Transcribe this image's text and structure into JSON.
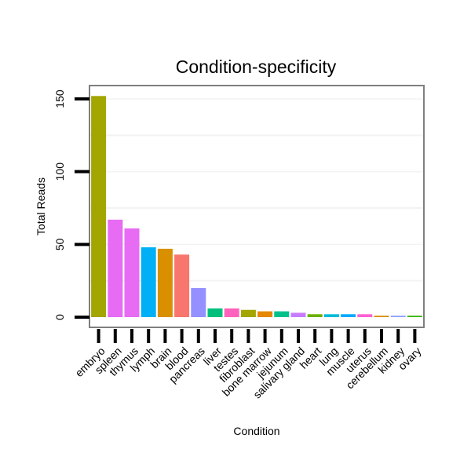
{
  "chart_data": {
    "type": "bar",
    "title": "Condition-specificity",
    "xlabel": "Condition",
    "ylabel": "Total Reads",
    "ylim": [
      -4,
      160
    ],
    "yticks": [
      0,
      50,
      100,
      150
    ],
    "grid": true,
    "legend": "none",
    "categories": [
      "embryo",
      "spleen",
      "thymus",
      "lymph",
      "brain",
      "blood",
      "pancreas",
      "liver",
      "testes",
      "fibroblast",
      "bone marrow",
      "jejunum",
      "salivary gland",
      "heart",
      "lung",
      "muscle",
      "uterus",
      "cerebellum",
      "kidney",
      "ovary"
    ],
    "values": [
      152,
      67,
      61,
      48,
      47,
      43,
      20,
      6,
      6,
      5,
      4,
      4,
      3,
      2,
      2,
      2,
      2,
      1,
      1,
      1
    ],
    "colors": [
      "#a3a500",
      "#e76bf3",
      "#e76bf3",
      "#00b0f6",
      "#d89000",
      "#f8766d",
      "#9590ff",
      "#00bf7d",
      "#ff62bc",
      "#a3a500",
      "#e58700",
      "#00c08b",
      "#c77cff",
      "#6bb100",
      "#00bcd8",
      "#00a9ff",
      "#fd61d1",
      "#d89000",
      "#8ea0ff",
      "#39b600"
    ]
  }
}
